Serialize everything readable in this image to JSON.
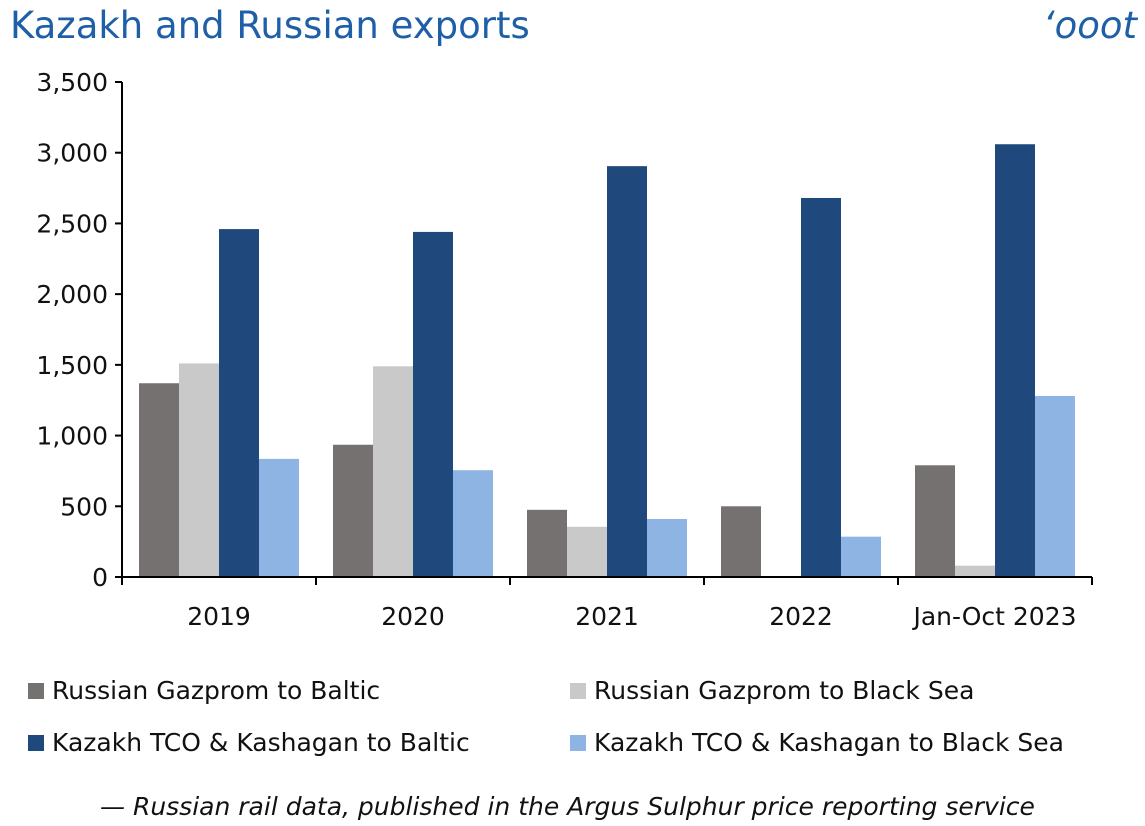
{
  "chart_data": {
    "type": "bar",
    "title": "Kazakh and Russian exports",
    "unit": "‘ooot",
    "categories": [
      "2019",
      "2020",
      "2021",
      "2022",
      "Jan-Oct 2023"
    ],
    "ylim": [
      0,
      3500
    ],
    "yticks": [
      "0",
      "500",
      "1,000",
      "1,500",
      "2,000",
      "2,500",
      "3,000",
      "3,500"
    ],
    "ytick_values": [
      0,
      500,
      1000,
      1500,
      2000,
      2500,
      3000,
      3500
    ],
    "grid": false,
    "legend_position": "bottom",
    "series": [
      {
        "name": "Russian Gazprom to Baltic",
        "color": "#767171",
        "values": [
          1370,
          935,
          475,
          500,
          790
        ]
      },
      {
        "name": "Russian Gazprom to Black Sea",
        "color": "#c9c9c9",
        "values": [
          1510,
          1490,
          355,
          0,
          80
        ]
      },
      {
        "name": "Kazakh TCO & Kashagan to Baltic",
        "color": "#1f497d",
        "values": [
          2460,
          2440,
          2905,
          2680,
          3060
        ]
      },
      {
        "name": "Kazakh TCO & Kashagan to Black Sea",
        "color": "#8eb4e3",
        "values": [
          835,
          755,
          410,
          285,
          1280
        ]
      }
    ],
    "source": "— Russian rail data, published in the Argus Sulphur price reporting service"
  }
}
